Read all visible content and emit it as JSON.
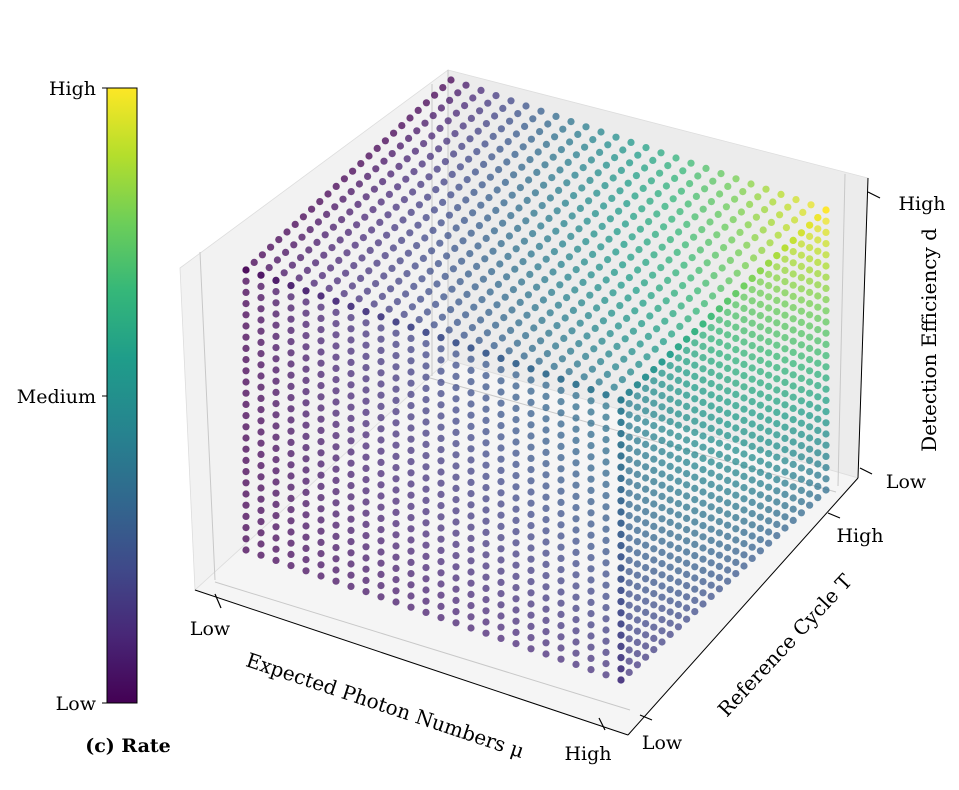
{
  "chart_data": {
    "type": "scatter",
    "subtype": "3d-scatter-cube",
    "caption": "(c) Rate",
    "colormap": [
      "#440154",
      "#482777",
      "#3f4a8a",
      "#31688e",
      "#26838f",
      "#1f9d8a",
      "#35b779",
      "#6cce59",
      "#b4de2c",
      "#fde725"
    ],
    "grid": true,
    "axes": {
      "x": {
        "label": "Expected Photon Numbers μ",
        "ticks": [
          "Low",
          "High"
        ]
      },
      "y": {
        "label": "Reference Cycle T",
        "ticks": [
          "Low",
          "High"
        ]
      },
      "z": {
        "label": "Detection Efficiency d",
        "ticks": [
          "Low",
          "High"
        ]
      }
    },
    "colorbar": {
      "ticks": [
        "High",
        "Medium",
        "Low"
      ]
    },
    "trend": "Rate increases with expected photon number μ, detection efficiency d and reference cycle T; maximum at high μ, high d, high T"
  }
}
